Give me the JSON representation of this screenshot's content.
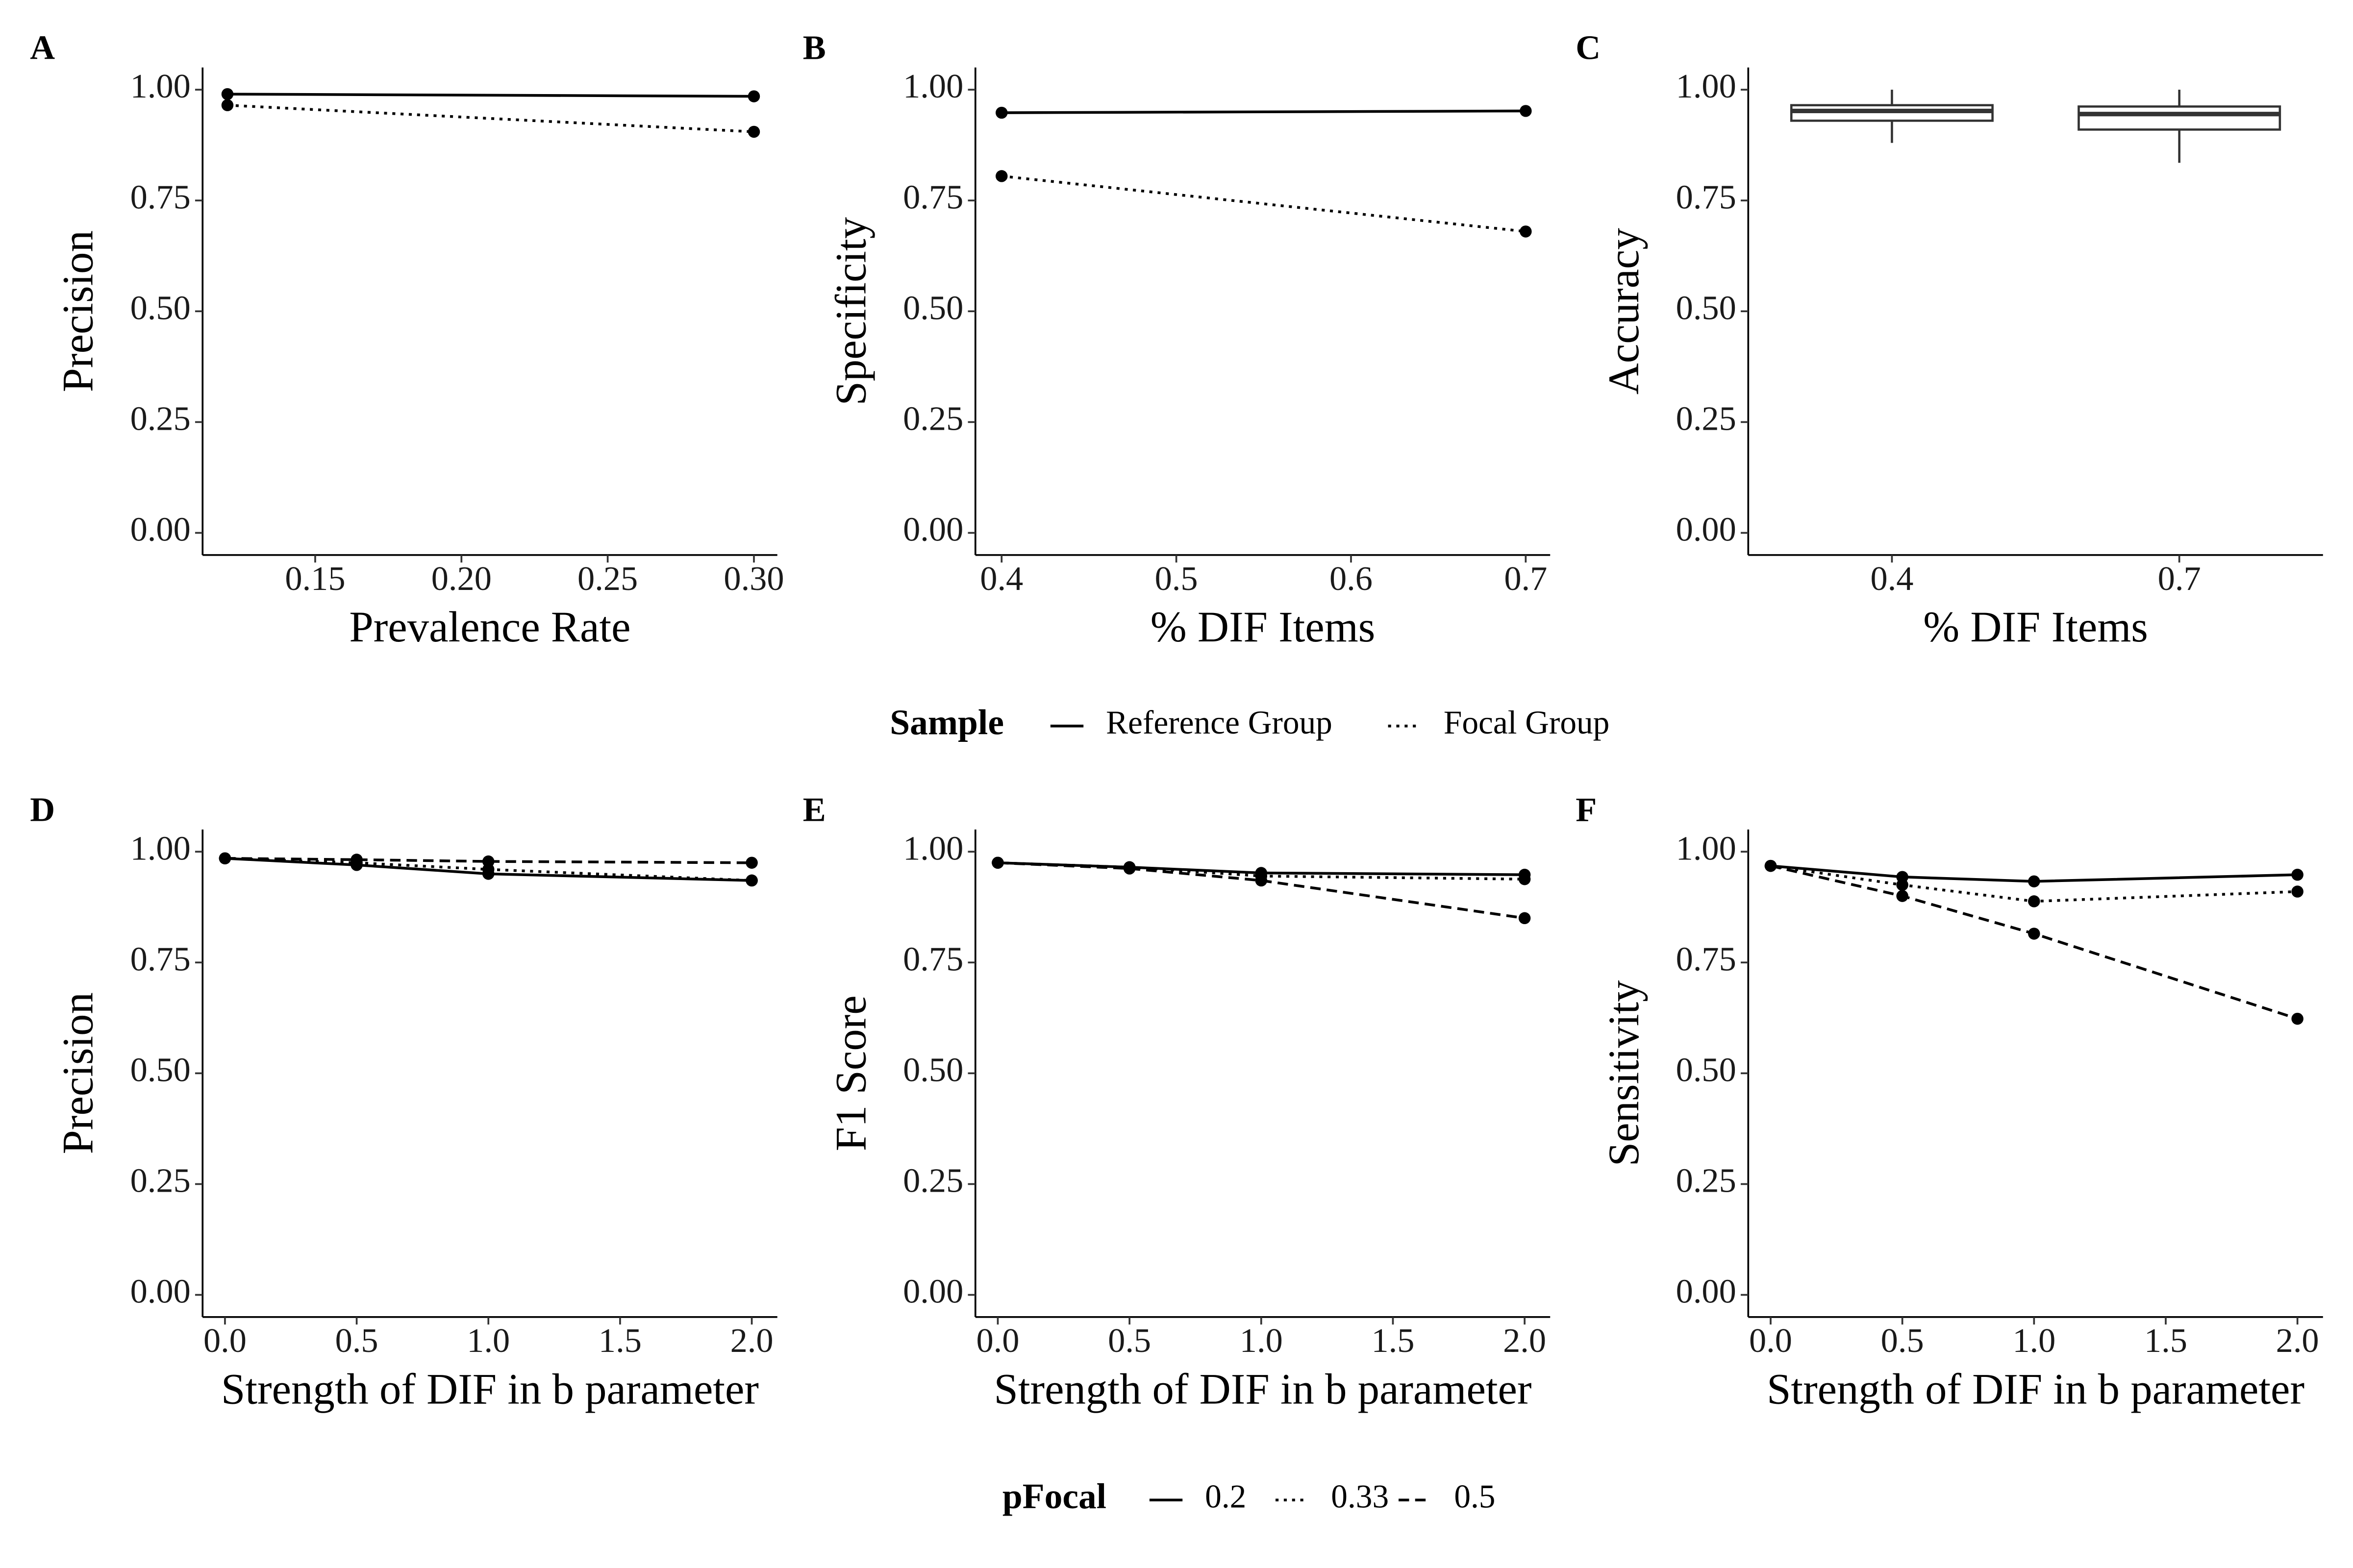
{
  "chart_data": [
    {
      "type": "line",
      "panel": "A",
      "y_label": "Precision",
      "x_label": "Prevalence Rate",
      "legend_title": "Sample",
      "x": [
        0.12,
        0.3
      ],
      "series": [
        {
          "name": "Reference Group",
          "color": "#000000",
          "linetype": "solid",
          "values": [
            0.99,
            0.985
          ]
        },
        {
          "name": "Focal Group",
          "color": "#000000",
          "linetype": "dotted",
          "values": [
            0.965,
            0.905
          ]
        }
      ],
      "xlim": [
        0.1115,
        0.308
      ],
      "xticks": [
        0.15,
        {
          "value": 0.2,
          "label": "0.20"
        },
        0.25,
        {
          "value": 0.3,
          "label": "0.30"
        }
      ],
      "ylim": [
        -0.05,
        1.05
      ],
      "yticks": [
        {
          "value": 0,
          "label": "0.00"
        },
        0.25,
        {
          "value": 0.5,
          "label": "0.50"
        },
        0.75,
        {
          "value": 1,
          "label": "1.00"
        }
      ]
    },
    {
      "type": "line",
      "panel": "B",
      "y_label": "Specificity",
      "x_label": "% DIF Items",
      "x": [
        0.4,
        0.7
      ],
      "series": [
        {
          "name": "Reference Group",
          "color": "#000000",
          "linetype": "solid",
          "values": [
            0.948,
            0.952
          ]
        },
        {
          "name": "Focal Group",
          "color": "#000000",
          "linetype": "dotted",
          "values": [
            0.805,
            0.68
          ]
        }
      ],
      "xlim": [
        0.385,
        0.714
      ],
      "xticks": [
        0.4,
        0.5,
        0.6,
        0.7
      ],
      "ylim": [
        -0.05,
        1.05
      ],
      "yticks": [
        {
          "value": 0,
          "label": "0.00"
        },
        0.25,
        {
          "value": 0.5,
          "label": "0.50"
        },
        0.75,
        {
          "value": 1,
          "label": "1.00"
        }
      ]
    },
    {
      "type": "box",
      "panel": "C",
      "y_label": "Accuracy",
      "x_label": "% DIF Items",
      "categories": [
        "0.4",
        "0.7"
      ],
      "color": "#333333",
      "boxes": [
        {
          "min": 0.88,
          "q1": 0.93,
          "median": 0.952,
          "q3": 0.965,
          "max": 1.0
        },
        {
          "min": 0.835,
          "q1": 0.91,
          "median": 0.945,
          "q3": 0.962,
          "max": 1.0
        }
      ],
      "ylim": [
        -0.05,
        1.05
      ],
      "yticks": [
        {
          "value": 0,
          "label": "0.00"
        },
        0.25,
        {
          "value": 0.5,
          "label": "0.50"
        },
        0.75,
        {
          "value": 1,
          "label": "1.00"
        }
      ]
    },
    {
      "type": "line",
      "panel": "D",
      "y_label": "Precision",
      "x_label": "Strength of DIF in b parameter",
      "legend_title": "pFocal",
      "x": [
        0,
        0.5,
        1,
        2
      ],
      "series": [
        {
          "name": "0.2",
          "color": "#000000",
          "linetype": "solid",
          "values": [
            0.985,
            0.97,
            0.95,
            0.935
          ]
        },
        {
          "name": "0.33",
          "color": "#000000",
          "linetype": "dotted",
          "values": [
            0.985,
            0.975,
            0.96,
            0.935
          ]
        },
        {
          "name": "0.5",
          "color": "#000000",
          "linetype": "dashed",
          "values": [
            0.985,
            0.982,
            0.978,
            0.975
          ]
        }
      ],
      "xlim": [
        -0.085,
        2.097
      ],
      "xticks": [
        {
          "value": 0,
          "label": "0.0"
        },
        0.5,
        {
          "value": 1,
          "label": "1.0"
        },
        1.5,
        {
          "value": 2,
          "label": "2.0"
        }
      ],
      "ylim": [
        -0.05,
        1.05
      ],
      "yticks": [
        {
          "value": 0,
          "label": "0.00"
        },
        0.25,
        {
          "value": 0.5,
          "label": "0.50"
        },
        0.75,
        {
          "value": 1,
          "label": "1.00"
        }
      ]
    },
    {
      "type": "line",
      "panel": "E",
      "y_label": "F1 Score",
      "x_label": "Strength of DIF in b parameter",
      "x": [
        0,
        0.5,
        1,
        2
      ],
      "series": [
        {
          "name": "0.2",
          "color": "#000000",
          "linetype": "solid",
          "values": [
            0.975,
            0.965,
            0.952,
            0.948
          ]
        },
        {
          "name": "0.33",
          "color": "#000000",
          "linetype": "dotted",
          "values": [
            0.975,
            0.965,
            0.945,
            0.938
          ]
        },
        {
          "name": "0.5",
          "color": "#000000",
          "linetype": "dashed",
          "values": [
            0.975,
            0.962,
            0.935,
            0.85
          ]
        }
      ],
      "xlim": [
        -0.085,
        2.097
      ],
      "xticks": [
        {
          "value": 0,
          "label": "0.0"
        },
        0.5,
        {
          "value": 1,
          "label": "1.0"
        },
        1.5,
        {
          "value": 2,
          "label": "2.0"
        }
      ],
      "ylim": [
        -0.05,
        1.05
      ],
      "yticks": [
        {
          "value": 0,
          "label": "0.00"
        },
        0.25,
        {
          "value": 0.5,
          "label": "0.50"
        },
        0.75,
        {
          "value": 1,
          "label": "1.00"
        }
      ]
    },
    {
      "type": "line",
      "panel": "F",
      "y_label": "Sensitivity",
      "x_label": "Strength of DIF in b parameter",
      "x": [
        0,
        0.5,
        1,
        2
      ],
      "series": [
        {
          "name": "0.2",
          "color": "#000000",
          "linetype": "solid",
          "values": [
            0.968,
            0.943,
            0.933,
            0.948
          ]
        },
        {
          "name": "0.33",
          "color": "#000000",
          "linetype": "dotted",
          "values": [
            0.968,
            0.925,
            0.888,
            0.91
          ]
        },
        {
          "name": "0.5",
          "color": "#000000",
          "linetype": "dashed",
          "values": [
            0.968,
            0.9,
            0.815,
            0.623
          ]
        }
      ],
      "xlim": [
        -0.085,
        2.097
      ],
      "xticks": [
        {
          "value": 0,
          "label": "0.0"
        },
        0.5,
        {
          "value": 1,
          "label": "1.0"
        },
        1.5,
        {
          "value": 2,
          "label": "2.0"
        }
      ],
      "ylim": [
        -0.05,
        1.05
      ],
      "yticks": [
        {
          "value": 0,
          "label": "0.00"
        },
        0.25,
        {
          "value": 0.5,
          "label": "0.50"
        },
        0.75,
        {
          "value": 1,
          "label": "1.00"
        }
      ]
    }
  ]
}
